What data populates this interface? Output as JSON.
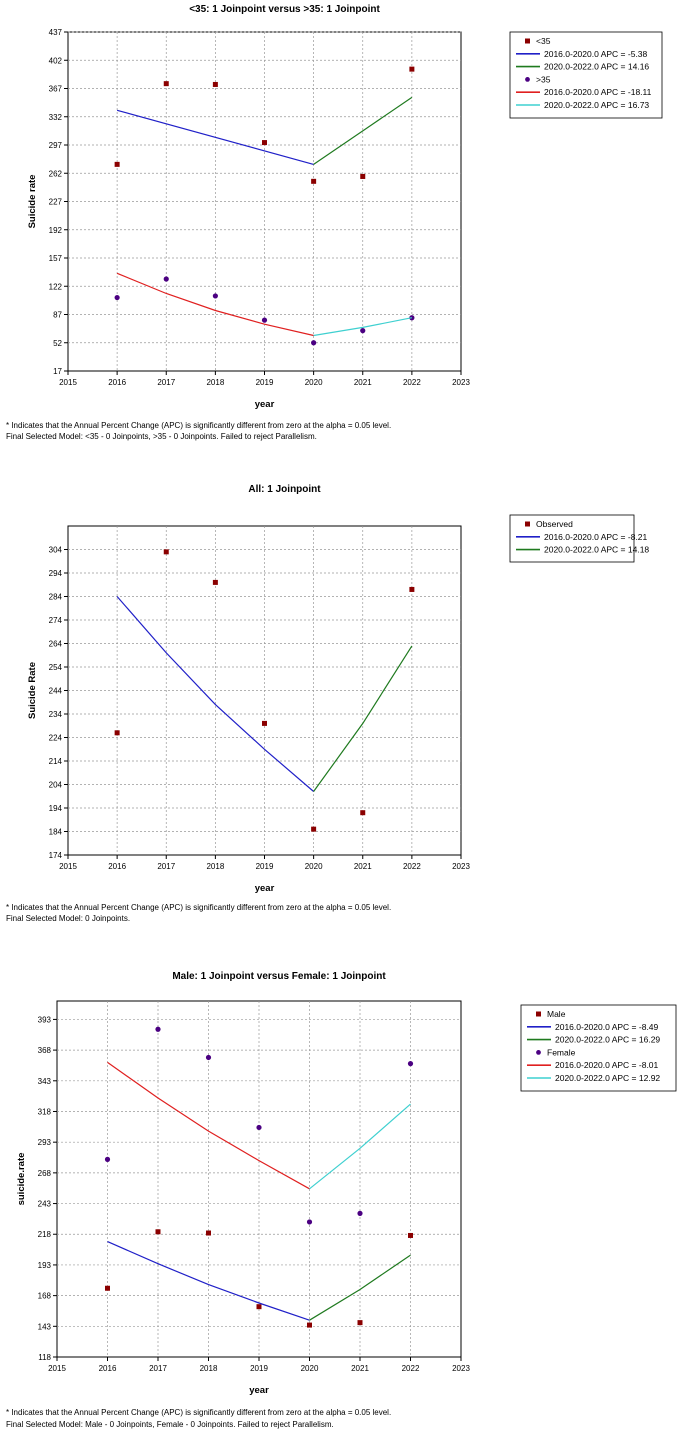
{
  "chart_data": [
    {
      "type": "line",
      "title": "<35: 1 Joinpoint  versus  >35: 1 Joinpoint",
      "xlabel": "year",
      "ylabel": "Suicide rate",
      "xlim": [
        2015,
        2023
      ],
      "ylim": [
        17,
        437
      ],
      "xticks": [
        2015,
        2016,
        2017,
        2018,
        2019,
        2020,
        2021,
        2022,
        2023
      ],
      "yticks": [
        17,
        52,
        87,
        122,
        157,
        192,
        227,
        262,
        297,
        332,
        367,
        402,
        437
      ],
      "grid": true,
      "legend_position": "right",
      "series": [
        {
          "name": "<35",
          "kind": "points",
          "marker": "square",
          "color": "#8b0000",
          "x": [
            2016,
            2017,
            2018,
            2019,
            2020,
            2021,
            2022
          ],
          "y": [
            273,
            373,
            372,
            300,
            252,
            258,
            391
          ]
        },
        {
          "name": "2016.0-2020.0 APC  = -5.38",
          "kind": "line",
          "color": "#2020c8",
          "x": [
            2016,
            2020
          ],
          "y": [
            340,
            273
          ]
        },
        {
          "name": "2020.0-2022.0 APC  = 14.16",
          "kind": "line",
          "color": "#1f7a1f",
          "x": [
            2020,
            2022
          ],
          "y": [
            273,
            356
          ]
        },
        {
          "name": ">35",
          "kind": "points",
          "marker": "circle",
          "color": "#4b0082",
          "x": [
            2016,
            2017,
            2018,
            2019,
            2020,
            2021,
            2022
          ],
          "y": [
            108,
            131,
            110,
            80,
            52,
            67,
            83
          ]
        },
        {
          "name": "2016.0-2020.0 APC  = -18.11",
          "kind": "line",
          "color": "#e02020",
          "x": [
            2016,
            2017,
            2018,
            2019,
            2020
          ],
          "y": [
            138,
            113,
            92,
            75,
            61
          ]
        },
        {
          "name": "2020.0-2022.0 APC  = 16.73",
          "kind": "line",
          "color": "#3fd0d0",
          "x": [
            2020,
            2021,
            2022
          ],
          "y": [
            61,
            71,
            83
          ]
        }
      ],
      "footnote": [
        "* Indicates that the Annual Percent Change (APC) is significantly different from zero at the alpha = 0.05 level.",
        "Final Selected Model: <35 - 0 Joinpoints, >35 - 0 Joinpoints. Failed to reject Parallelism."
      ]
    },
    {
      "type": "line",
      "title": "All: 1 Joinpoint",
      "xlabel": "year",
      "ylabel": "Suicide Rate",
      "xlim": [
        2015,
        2023
      ],
      "ylim": [
        174,
        314
      ],
      "xticks": [
        2015,
        2016,
        2017,
        2018,
        2019,
        2020,
        2021,
        2022,
        2023
      ],
      "yticks": [
        174,
        184,
        194,
        204,
        214,
        224,
        234,
        244,
        254,
        264,
        274,
        284,
        294,
        304
      ],
      "grid": true,
      "legend_position": "right",
      "series": [
        {
          "name": "Observed",
          "kind": "points",
          "marker": "square",
          "color": "#8b0000",
          "x": [
            2016,
            2017,
            2018,
            2019,
            2020,
            2021,
            2022
          ],
          "y": [
            226,
            303,
            290,
            230,
            185,
            192,
            287
          ]
        },
        {
          "name": "2016.0-2020.0 APC  = -8.21",
          "kind": "line",
          "color": "#2020c8",
          "x": [
            2016,
            2017,
            2018,
            2019,
            2020
          ],
          "y": [
            284,
            260,
            238,
            219,
            201
          ]
        },
        {
          "name": "2020.0-2022.0 APC  = 14.18",
          "kind": "line",
          "color": "#1f7a1f",
          "x": [
            2020,
            2021,
            2022
          ],
          "y": [
            201,
            230,
            263
          ]
        }
      ],
      "footnote": [
        "* Indicates that the Annual Percent Change (APC) is significantly different from zero at the alpha = 0.05 level.",
        "Final Selected Model: 0 Joinpoints."
      ]
    },
    {
      "type": "line",
      "title": "Male: 1 Joinpoint  versus  Female: 1 Joinpoint",
      "xlabel": "year",
      "ylabel": "suicide.rate",
      "xlim": [
        2015,
        2023
      ],
      "ylim": [
        118,
        408
      ],
      "xticks": [
        2015,
        2016,
        2017,
        2018,
        2019,
        2020,
        2021,
        2022,
        2023
      ],
      "yticks": [
        118,
        143,
        168,
        193,
        218,
        243,
        268,
        293,
        318,
        343,
        368,
        393
      ],
      "grid": true,
      "legend_position": "right",
      "series": [
        {
          "name": "Male",
          "kind": "points",
          "marker": "square",
          "color": "#8b0000",
          "x": [
            2016,
            2017,
            2018,
            2019,
            2020,
            2021,
            2022
          ],
          "y": [
            174,
            220,
            219,
            159,
            144,
            146,
            217
          ]
        },
        {
          "name": "2016.0-2020.0 APC  = -8.49",
          "kind": "line",
          "color": "#2020c8",
          "x": [
            2016,
            2017,
            2018,
            2019,
            2020
          ],
          "y": [
            212,
            194,
            177,
            162,
            148
          ]
        },
        {
          "name": "2020.0-2022.0 APC  = 16.29",
          "kind": "line",
          "color": "#1f7a1f",
          "x": [
            2020,
            2021,
            2022
          ],
          "y": [
            148,
            173,
            201
          ]
        },
        {
          "name": "Female",
          "kind": "points",
          "marker": "circle",
          "color": "#4b0082",
          "x": [
            2016,
            2017,
            2018,
            2019,
            2020,
            2021,
            2022
          ],
          "y": [
            279,
            385,
            362,
            305,
            228,
            235,
            357
          ]
        },
        {
          "name": "2016.0-2020.0 APC  = -8.01",
          "kind": "line",
          "color": "#e02020",
          "x": [
            2016,
            2017,
            2018,
            2019,
            2020
          ],
          "y": [
            358,
            329,
            302,
            278,
            255
          ]
        },
        {
          "name": "2020.0-2022.0 APC  = 12.92",
          "kind": "line",
          "color": "#3fd0d0",
          "x": [
            2020,
            2021,
            2022
          ],
          "y": [
            255,
            288,
            324
          ]
        }
      ],
      "footnote": [
        "* Indicates that the Annual Percent Change (APC) is significantly different from zero at the alpha = 0.05 level.",
        "Final Selected Model: Male - 0 Joinpoints, Female - 0 Joinpoints. Failed to reject Parallelism."
      ]
    }
  ]
}
